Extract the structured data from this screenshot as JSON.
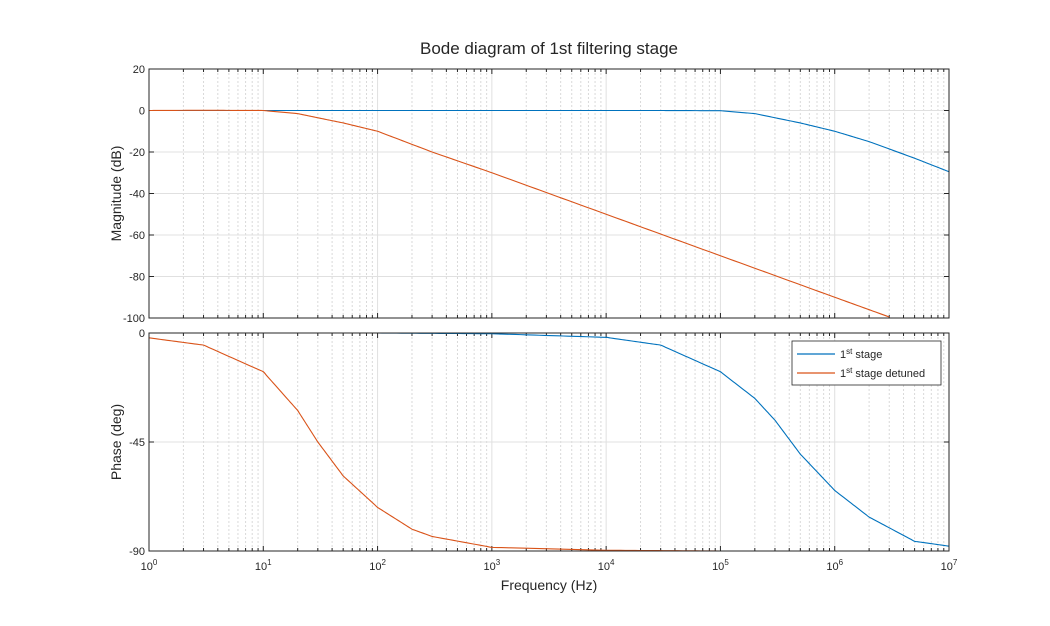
{
  "chart_data": [
    {
      "type": "line",
      "title": "Bode diagram of 1st filtering stage",
      "ylabel": "Magnitude (dB)",
      "xscale": "log",
      "xlim": [
        1,
        10000000
      ],
      "ylim": [
        -100,
        20
      ],
      "yticks": [
        "20",
        "0",
        "-20",
        "-40",
        "-60",
        "-80",
        "-100"
      ],
      "grid": true,
      "series": [
        {
          "color": "#0072BD",
          "x": [
            1,
            10,
            100,
            1000,
            10000,
            30000,
            100000,
            200000,
            500000,
            1000000,
            2000000,
            5000000,
            10000000
          ],
          "y": [
            0,
            0,
            0,
            0,
            0,
            0,
            -0.1,
            -1.5,
            -6,
            -10,
            -15,
            -23,
            -29.5
          ]
        },
        {
          "color": "#D95319",
          "x": [
            1,
            3,
            10,
            20,
            30,
            50,
            100,
            300,
            1000,
            10000,
            100000,
            1000000,
            3000000
          ],
          "y": [
            0,
            0.1,
            0,
            -1.5,
            -3.5,
            -6,
            -10,
            -20,
            -30,
            -50,
            -70,
            -90,
            -99.5
          ]
        }
      ]
    },
    {
      "type": "line",
      "xlabel": "Frequency  (Hz)",
      "ylabel": "Phase (deg)",
      "xscale": "log",
      "xlim": [
        1,
        10000000
      ],
      "ylim": [
        -90,
        0
      ],
      "yticks": [
        "0",
        "-45",
        "-90"
      ],
      "xticks": {
        "base": "10",
        "exponents": [
          "0",
          "1",
          "2",
          "3",
          "4",
          "5",
          "6",
          "7"
        ]
      },
      "grid": true,
      "legend": {
        "placement": "top-right",
        "entries": [
          {
            "base": "1",
            "sup": "st",
            "rest": " stage"
          },
          {
            "base": "1",
            "sup": "st",
            "rest": " stage detuned"
          }
        ]
      },
      "series": [
        {
          "color": "#0072BD",
          "x": [
            1,
            10,
            100,
            1000,
            10000,
            30000,
            100000,
            200000,
            300000,
            500000,
            1000000,
            2000000,
            5000000,
            10000000
          ],
          "y": [
            0,
            0,
            0,
            -0.3,
            -1.8,
            -5,
            -16,
            -27,
            -36,
            -50,
            -65,
            -76,
            -86,
            -88
          ]
        },
        {
          "color": "#D95319",
          "x": [
            1,
            3,
            10,
            20,
            30,
            50,
            100,
            200,
            300,
            1000,
            10000,
            100000,
            10000000
          ],
          "y": [
            -2,
            -5,
            -16,
            -32,
            -45,
            -59,
            -72,
            -81,
            -84,
            -88.5,
            -89.7,
            -90,
            -90
          ]
        }
      ]
    }
  ]
}
